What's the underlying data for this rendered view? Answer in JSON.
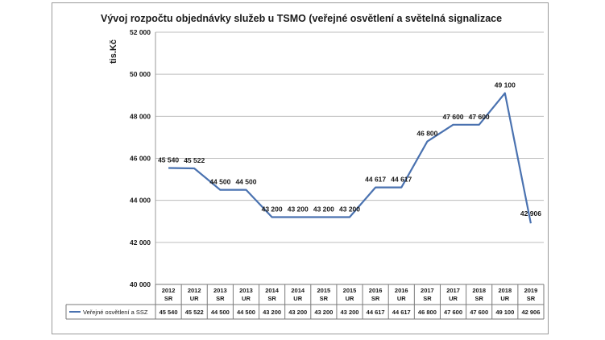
{
  "chart_data": {
    "type": "line",
    "title": "Vývoj rozpočtu objednávky služeb u TSMO (veřejné osvětlení a světelná signalizace",
    "ylabel": "tis.Kč",
    "xlabel": "",
    "ylim": [
      40000,
      52000
    ],
    "y_ticks": [
      "40 000",
      "42 000",
      "44 000",
      "46 000",
      "48 000",
      "50 000",
      "52 000"
    ],
    "y_tick_values": [
      40000,
      42000,
      44000,
      46000,
      48000,
      50000,
      52000
    ],
    "grid": "horizontal",
    "legend": "bottom-left (data table)",
    "categories": [
      [
        "2012",
        "SR"
      ],
      [
        "2012",
        "UR"
      ],
      [
        "2013",
        "SR"
      ],
      [
        "2013",
        "UR"
      ],
      [
        "2014",
        "SR"
      ],
      [
        "2014",
        "UR"
      ],
      [
        "2015",
        "SR"
      ],
      [
        "2015",
        "UR"
      ],
      [
        "2016",
        "SR"
      ],
      [
        "2016",
        "UR"
      ],
      [
        "2017",
        "SR"
      ],
      [
        "2017",
        "UR"
      ],
      [
        "2018",
        "SR"
      ],
      [
        "2018",
        "UR"
      ],
      [
        "2019",
        "SR"
      ]
    ],
    "series": [
      {
        "name": "Veřejné osvětlení a SSZ",
        "color": "#4a72b0",
        "values": [
          45540,
          45522,
          44500,
          44500,
          43200,
          43200,
          43200,
          43200,
          44617,
          44617,
          46800,
          47600,
          47600,
          49100,
          42906
        ],
        "labels": [
          "45 540",
          "45 522",
          "44 500",
          "44 500",
          "43 200",
          "43 200",
          "43 200",
          "43 200",
          "44 617",
          "44 617",
          "46 800",
          "47 600",
          "47 600",
          "49 100",
          "42 906"
        ]
      }
    ]
  }
}
